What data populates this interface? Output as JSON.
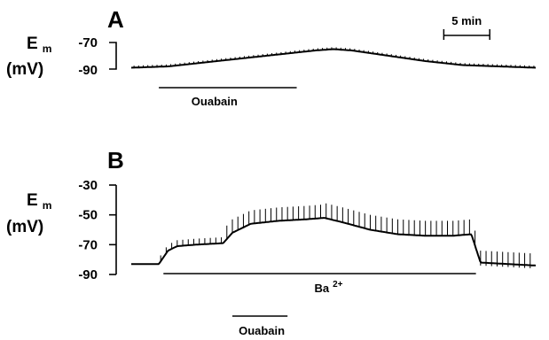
{
  "chart_data": [
    {
      "type": "line",
      "panel_label": "A",
      "ylabel_main": "E",
      "ylabel_sub": "m",
      "yunit": "(mV)",
      "yticks": [
        -70,
        -90
      ],
      "ylim": [
        -90,
        -70
      ],
      "xlim": [
        0,
        44
      ],
      "scale_bar": {
        "label": "5 min",
        "minutes": 5,
        "start": 34
      },
      "drug_bars": [
        {
          "label": "Ouabain",
          "start": 3,
          "end": 18
        }
      ],
      "series": [
        {
          "x": [
            0,
            4,
            8,
            12,
            16,
            20,
            22,
            24,
            28,
            32,
            36,
            40,
            44
          ],
          "values": [
            -89,
            -88,
            -85,
            -82,
            -79,
            -76,
            -75,
            -76,
            -80,
            -84,
            -87,
            -88,
            -89
          ],
          "spike_interval_min": 0.5,
          "spike_amplitude_mv": 1.5
        }
      ]
    },
    {
      "type": "line",
      "panel_label": "B",
      "ylabel_main": "E",
      "ylabel_sub": "m",
      "yunit": "(mV)",
      "yticks": [
        -30,
        -50,
        -70,
        -90
      ],
      "ylim": [
        -90,
        -30
      ],
      "xlim": [
        0,
        44
      ],
      "drug_bars": [
        {
          "label": "Ba",
          "label_sup": "2+",
          "start": 3.5,
          "end": 37.5
        },
        {
          "label": "Ouabain",
          "start": 11,
          "end": 17
        }
      ],
      "series": [
        {
          "x": [
            0,
            3,
            4,
            5,
            7,
            10,
            11,
            13,
            16,
            19,
            21,
            23,
            26,
            29,
            32,
            35,
            37,
            38,
            44
          ],
          "values": [
            -83,
            -83,
            -74,
            -71,
            -70,
            -69,
            -62,
            -56,
            -54,
            -53,
            -52,
            -55,
            -60,
            -63,
            -64,
            -64,
            -63,
            -82,
            -84
          ],
          "spike_interval_min": 0.6,
          "spike_height_mv": [
            [
              0,
              3,
              0
            ],
            [
              3,
              10,
              4
            ],
            [
              10,
              21,
              9
            ],
            [
              21,
              37.5,
              10
            ],
            [
              37.5,
              44,
              10
            ]
          ]
        }
      ]
    }
  ]
}
